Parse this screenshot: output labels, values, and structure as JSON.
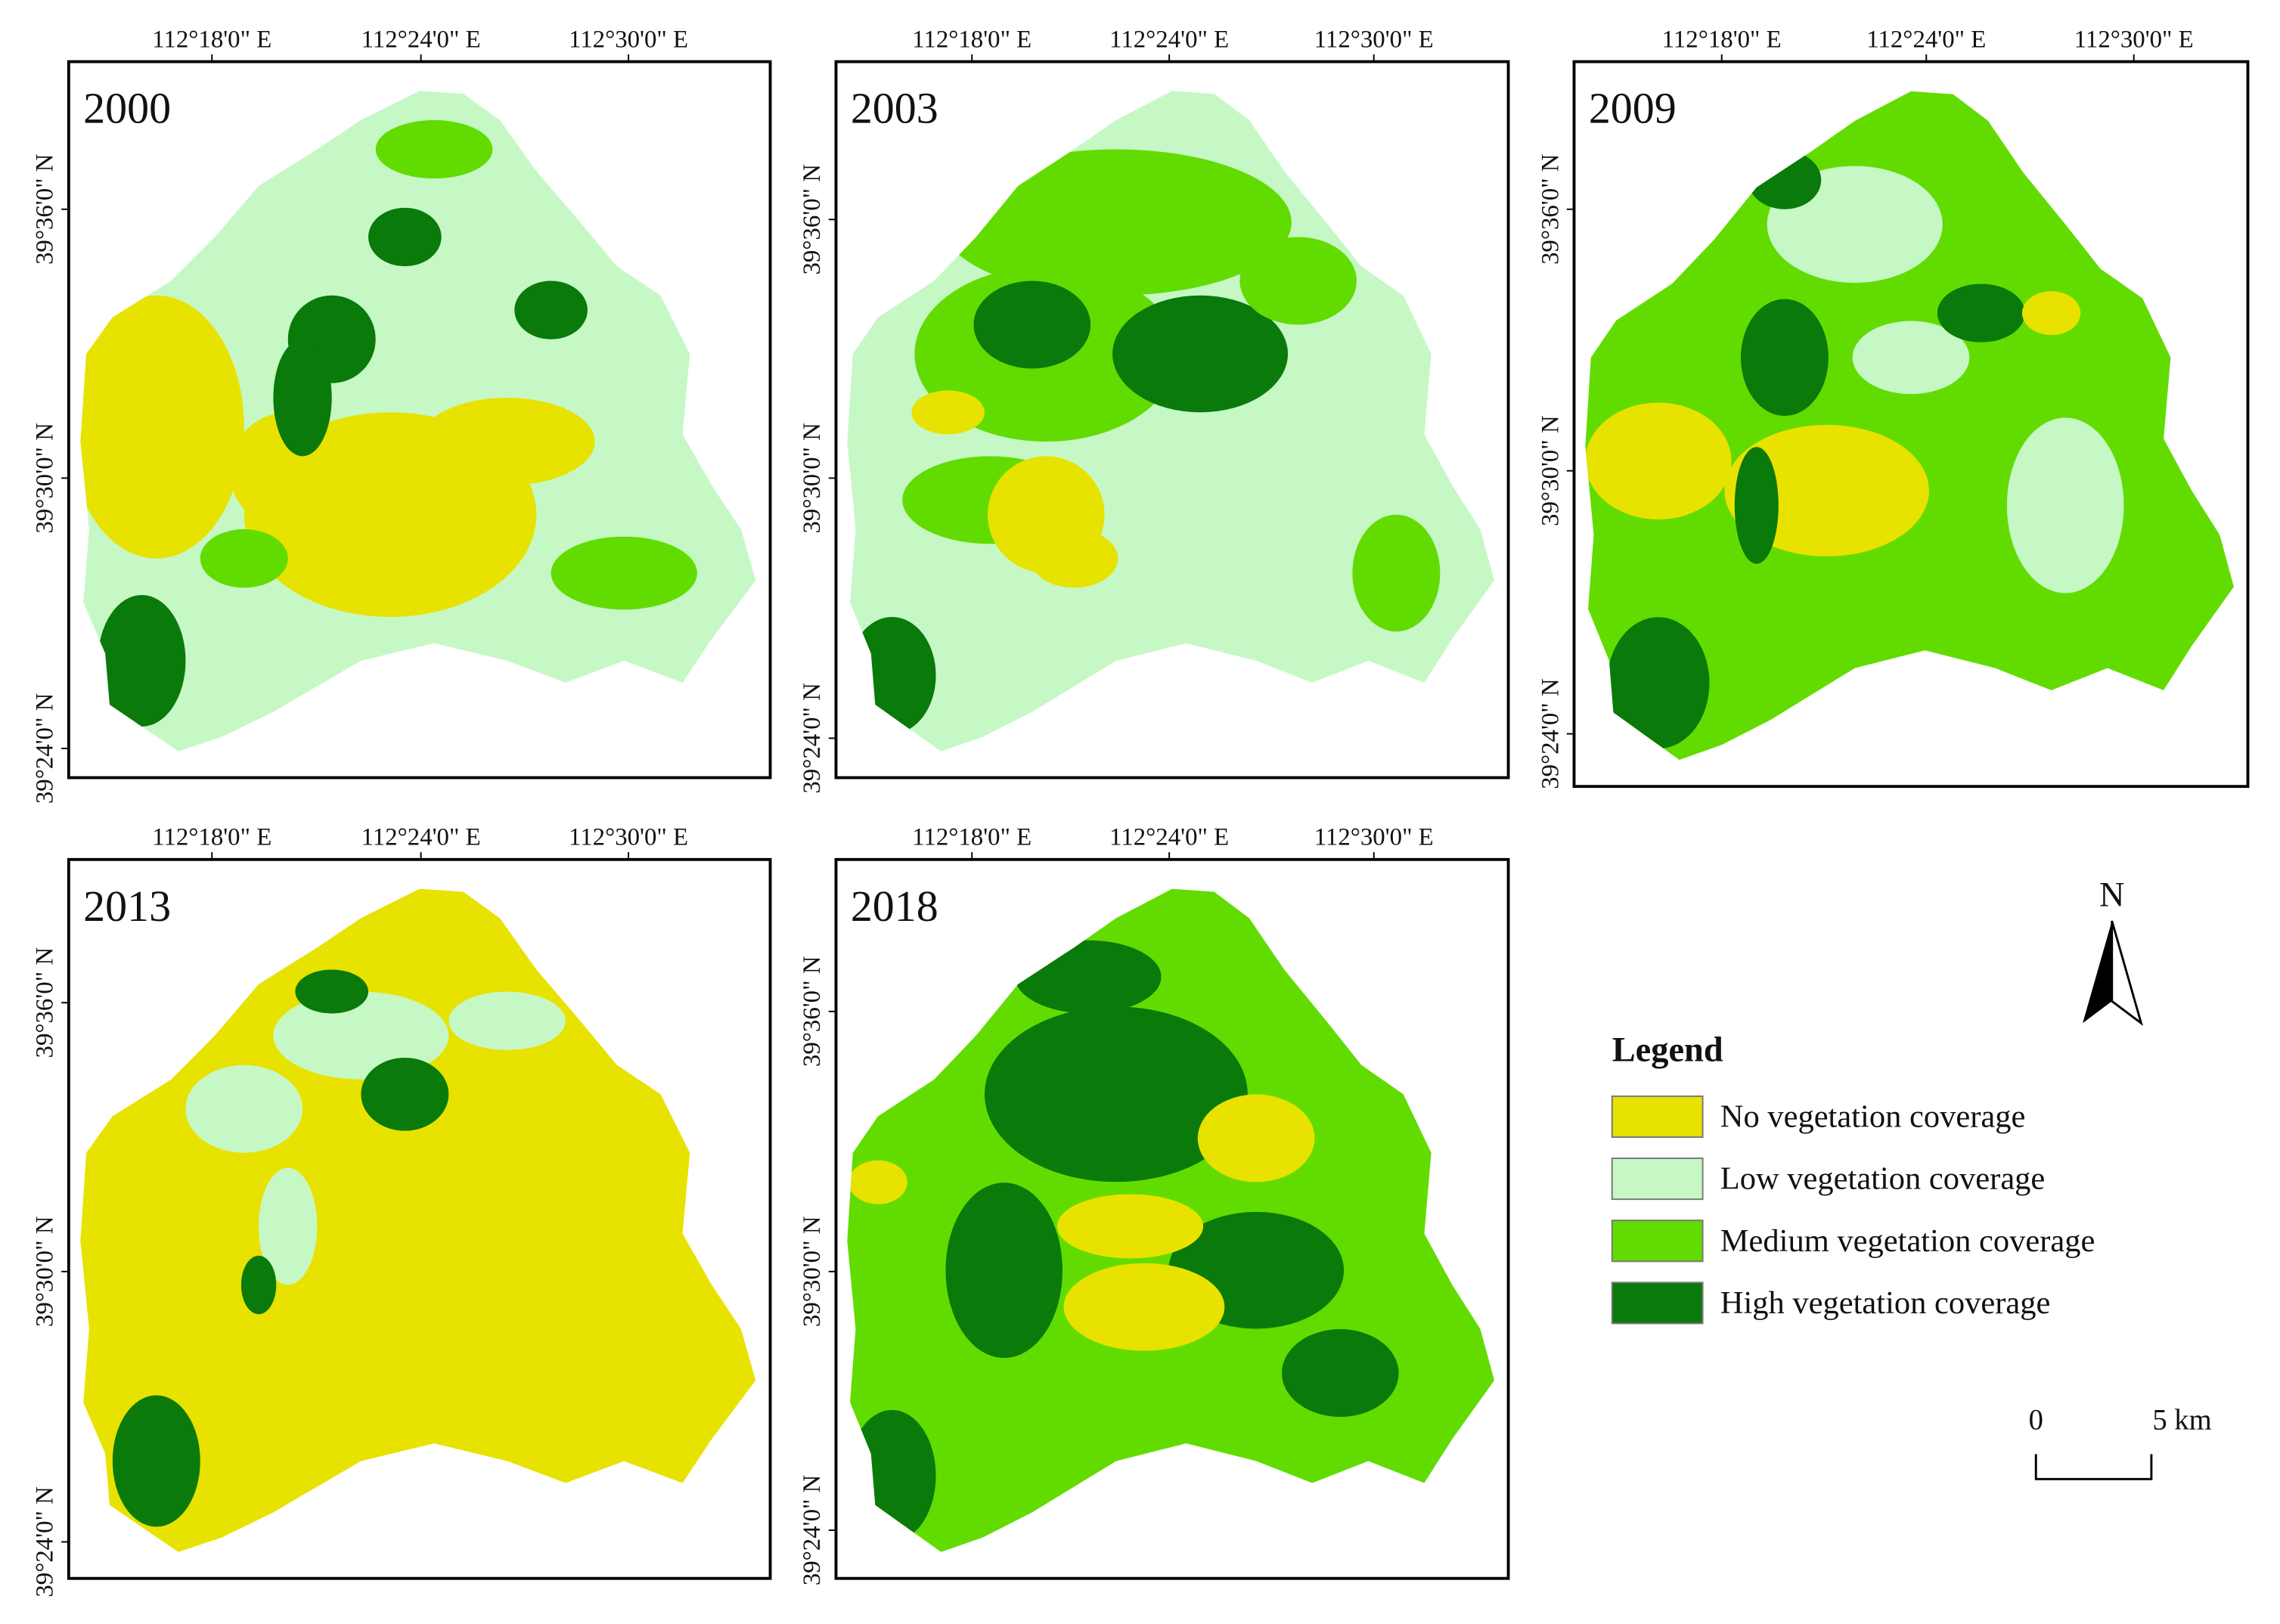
{
  "panels": [
    {
      "year": "2000",
      "x_labels": [
        "112°18'0\" E",
        "112°24'0\" E",
        "112°30'0\" E"
      ],
      "y_labels": [
        "39°36'0\" N",
        "39°30'0\" N",
        "39°24'0\" N"
      ]
    },
    {
      "year": "2003",
      "x_labels": [
        "112°18'0\" E",
        "112°24'0\" E",
        "112°30'0\" E"
      ],
      "y_labels": [
        "39°36'0\" N",
        "39°30'0\" N",
        "39°24'0\" N"
      ]
    },
    {
      "year": "2009",
      "x_labels": [
        "112°18'0\" E",
        "112°24'0\" E",
        "112°30'0\" E"
      ],
      "y_labels": [
        "39°36'0\" N",
        "39°30'0\" N",
        "39°24'0\" N"
      ]
    },
    {
      "year": "2013",
      "x_labels": [
        "112°18'0\" E",
        "112°24'0\" E",
        "112°30'0\" E"
      ],
      "y_labels": [
        "39°36'0\" N",
        "39°30'0\" N",
        "39°24'0\" N"
      ]
    },
    {
      "year": "2018",
      "x_labels": [
        "112°18'0\" E",
        "112°24'0\" E",
        "112°30'0\" E"
      ],
      "y_labels": [
        "39°36'0\" N",
        "39°30'0\" N",
        "39°24'0\" N"
      ]
    }
  ],
  "legend": {
    "title": "Legend",
    "items": [
      {
        "name": "No vegetation coverage",
        "color": "#e8e200"
      },
      {
        "name": "Low vegetation coverage",
        "color": "#c6f8c6"
      },
      {
        "name": "Medium vegetation coverage",
        "color": "#62dc00"
      },
      {
        "name": "High vegetation coverage",
        "color": "#0a7a0a"
      }
    ]
  },
  "north": "N",
  "scale": {
    "start": "0",
    "end": "5 km"
  }
}
